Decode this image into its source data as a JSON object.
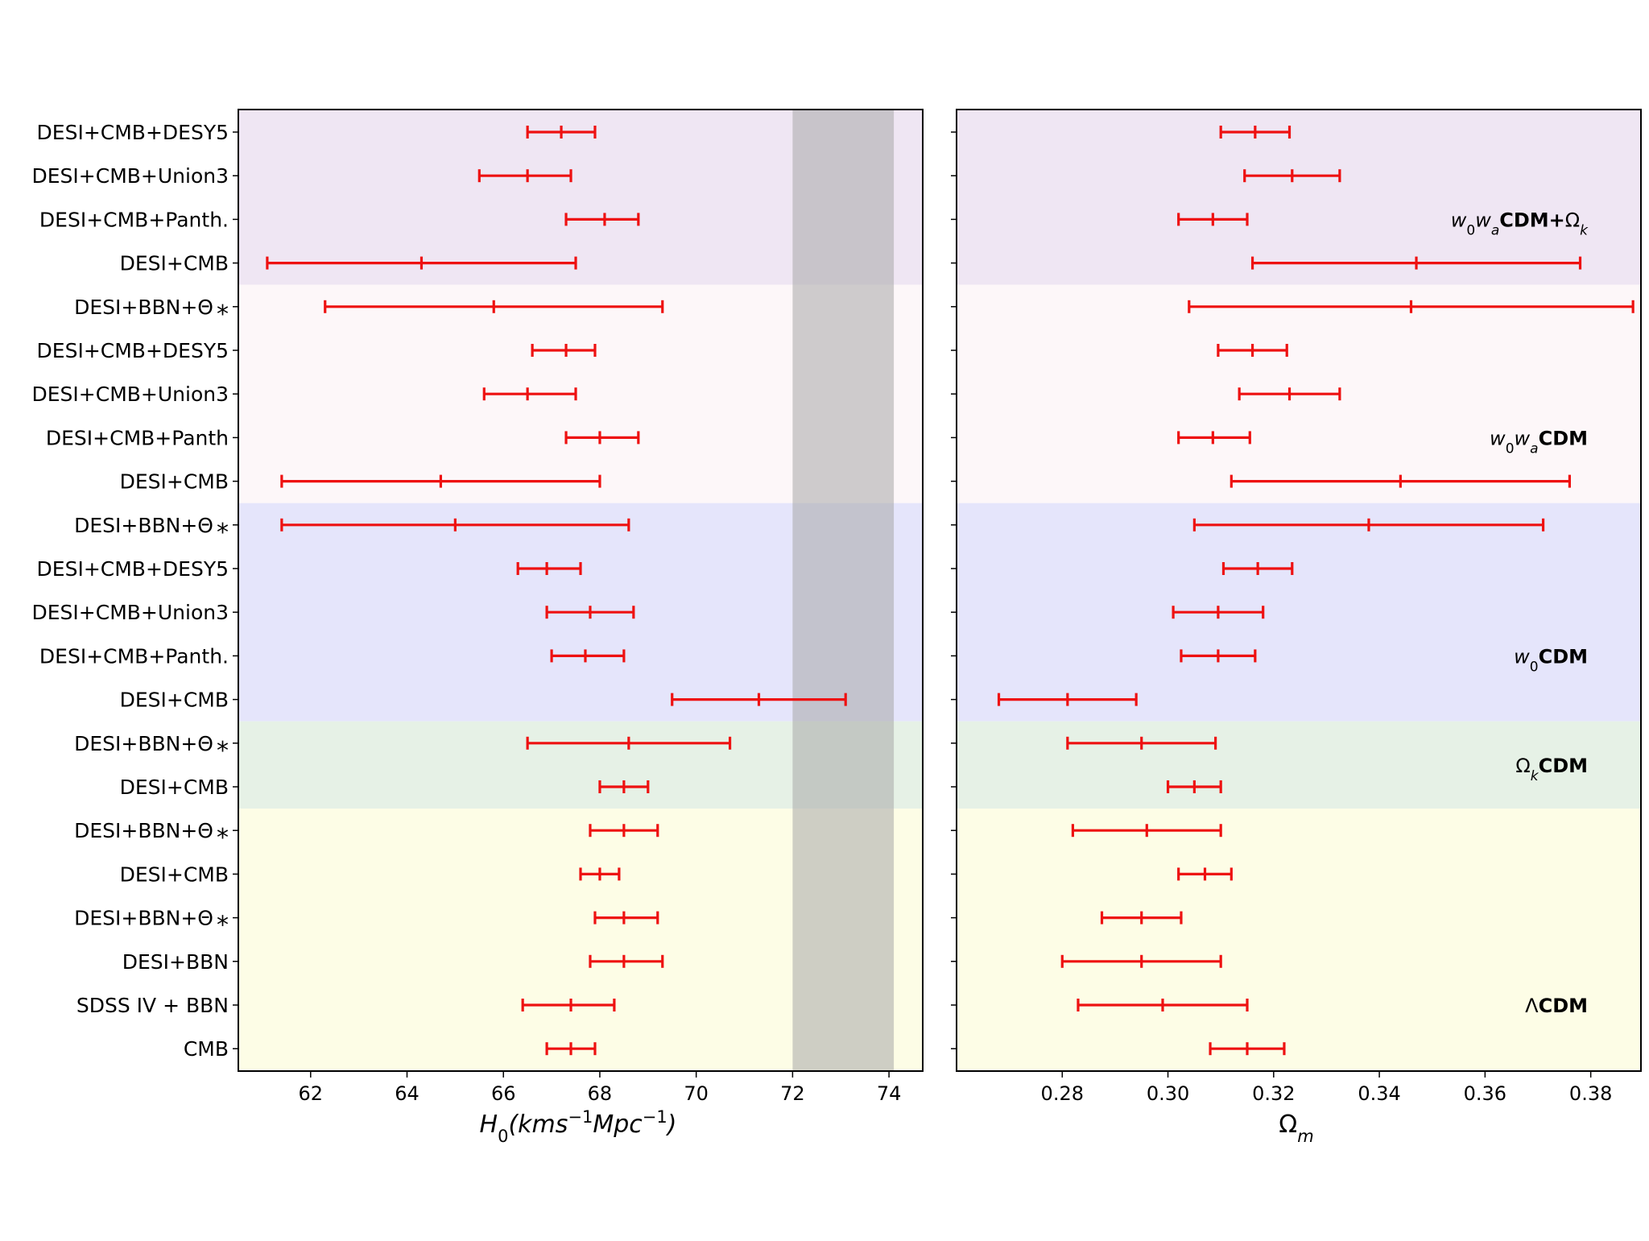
{
  "colors": {
    "marker": "#ee1111",
    "h0_band": "#a8a8a8",
    "w0wa_omegak": "#efe6f3",
    "w0wa": "#fdf7f9",
    "w0": "#e5e5fb",
    "omegak": "#e6f1e6",
    "lcdm": "#fdfde6"
  },
  "chart_data": [
    {
      "type": "errorbar",
      "panel": "H0",
      "xlabel": "H_0(kms^{-1}Mpc^{-1})",
      "xlim": [
        60.5,
        74.7
      ],
      "xticks": [
        62,
        64,
        66,
        68,
        70,
        72,
        74
      ],
      "shaded_band": [
        72.0,
        74.1
      ],
      "rows": [
        {
          "label": "DESI+CMB+DESY5",
          "value": 67.2,
          "low": 66.5,
          "high": 67.9
        },
        {
          "label": "DESI+CMB+Union3",
          "value": 66.5,
          "low": 65.5,
          "high": 67.4
        },
        {
          "label": "DESI+CMB+Panth.",
          "value": 68.1,
          "low": 67.3,
          "high": 68.8
        },
        {
          "label": "DESI+CMB",
          "value": 64.3,
          "low": 61.1,
          "high": 67.5
        },
        {
          "label": "DESI+BBN+Θ_*",
          "value": 65.8,
          "low": 62.3,
          "high": 69.3
        },
        {
          "label": "DESI+CMB+DESY5",
          "value": 67.3,
          "low": 66.6,
          "high": 67.9
        },
        {
          "label": "DESI+CMB+Union3",
          "value": 66.5,
          "low": 65.6,
          "high": 67.5
        },
        {
          "label": "DESI+CMB+Panth",
          "value": 68.0,
          "low": 67.3,
          "high": 68.8
        },
        {
          "label": "DESI+CMB",
          "value": 64.7,
          "low": 61.4,
          "high": 68.0
        },
        {
          "label": "DESI+BBN+Θ_*",
          "value": 65.0,
          "low": 61.4,
          "high": 68.6
        },
        {
          "label": "DESI+CMB+DESY5",
          "value": 66.9,
          "low": 66.3,
          "high": 67.6
        },
        {
          "label": "DESI+CMB+Union3",
          "value": 67.8,
          "low": 66.9,
          "high": 68.7
        },
        {
          "label": "DESI+CMB+Panth.",
          "value": 67.7,
          "low": 67.0,
          "high": 68.5
        },
        {
          "label": "DESI+CMB",
          "value": 71.3,
          "low": 69.5,
          "high": 73.1
        },
        {
          "label": "DESI+BBN+Θ_*",
          "value": 68.6,
          "low": 66.5,
          "high": 70.7
        },
        {
          "label": "DESI+CMB",
          "value": 68.5,
          "low": 68.0,
          "high": 69.0
        },
        {
          "label": "DESI+BBN+Θ_*",
          "value": 68.5,
          "low": 67.8,
          "high": 69.2
        },
        {
          "label": "DESI+CMB",
          "value": 68.0,
          "low": 67.6,
          "high": 68.4
        },
        {
          "label": "DESI+BBN+Θ_*",
          "value": 68.5,
          "low": 67.9,
          "high": 69.2
        },
        {
          "label": "DESI+BBN",
          "value": 68.5,
          "low": 67.8,
          "high": 69.3
        },
        {
          "label": "SDSS IV + BBN",
          "value": 67.4,
          "low": 66.4,
          "high": 68.3
        },
        {
          "label": "CMB",
          "value": 67.4,
          "low": 66.9,
          "high": 67.9
        }
      ]
    },
    {
      "type": "errorbar",
      "panel": "Omega_m",
      "xlabel": "Ω_m",
      "xlim": [
        0.26,
        0.3895
      ],
      "xticks": [
        0.28,
        0.3,
        0.32,
        0.34,
        0.36,
        0.38
      ],
      "xticklabels": [
        "0.28",
        "0.30",
        "0.32",
        "0.34",
        "0.36",
        "0.38"
      ],
      "rows": [
        {
          "value": 0.3165,
          "low": 0.31,
          "high": 0.323
        },
        {
          "value": 0.3235,
          "low": 0.3145,
          "high": 0.3325
        },
        {
          "value": 0.3085,
          "low": 0.302,
          "high": 0.315
        },
        {
          "value": 0.347,
          "low": 0.316,
          "high": 0.378
        },
        {
          "value": 0.346,
          "low": 0.304,
          "high": 0.388
        },
        {
          "value": 0.316,
          "low": 0.3095,
          "high": 0.3225
        },
        {
          "value": 0.323,
          "low": 0.3135,
          "high": 0.3325
        },
        {
          "value": 0.3085,
          "low": 0.302,
          "high": 0.3155
        },
        {
          "value": 0.344,
          "low": 0.312,
          "high": 0.376
        },
        {
          "value": 0.338,
          "low": 0.305,
          "high": 0.371
        },
        {
          "value": 0.317,
          "low": 0.3105,
          "high": 0.3235
        },
        {
          "value": 0.3095,
          "low": 0.301,
          "high": 0.318
        },
        {
          "value": 0.3095,
          "low": 0.3025,
          "high": 0.3165
        },
        {
          "value": 0.281,
          "low": 0.268,
          "high": 0.294
        },
        {
          "value": 0.295,
          "low": 0.281,
          "high": 0.309
        },
        {
          "value": 0.305,
          "low": 0.3,
          "high": 0.31
        },
        {
          "value": 0.296,
          "low": 0.282,
          "high": 0.31
        },
        {
          "value": 0.307,
          "low": 0.302,
          "high": 0.312
        },
        {
          "value": 0.295,
          "low": 0.2875,
          "high": 0.3025
        },
        {
          "value": 0.295,
          "low": 0.28,
          "high": 0.31
        },
        {
          "value": 0.299,
          "low": 0.283,
          "high": 0.315
        },
        {
          "value": 0.315,
          "low": 0.308,
          "high": 0.322
        }
      ]
    }
  ],
  "model_groups": [
    {
      "key": "w0wa_omegak",
      "first_row": 0,
      "last_row": 3,
      "label_parts": [
        {
          "t": "w",
          "it": true
        },
        {
          "t": "0",
          "sub": true
        },
        {
          "t": "w",
          "it": true
        },
        {
          "t": "a",
          "sub": true,
          "it": true
        },
        {
          "t": "CDM+",
          "bold": true
        },
        {
          "t": "Ω"
        },
        {
          "t": "k",
          "sub": true,
          "it": true
        }
      ],
      "label_row": 2
    },
    {
      "key": "w0wa",
      "first_row": 4,
      "last_row": 8,
      "label_parts": [
        {
          "t": "w",
          "it": true
        },
        {
          "t": "0",
          "sub": true
        },
        {
          "t": "w",
          "it": true
        },
        {
          "t": "a",
          "sub": true,
          "it": true
        },
        {
          "t": "CDM",
          "bold": true
        }
      ],
      "label_row": 7
    },
    {
      "key": "w0",
      "first_row": 9,
      "last_row": 13,
      "label_parts": [
        {
          "t": "w",
          "it": true
        },
        {
          "t": "0",
          "sub": true
        },
        {
          "t": "CDM",
          "bold": true
        }
      ],
      "label_row": 12
    },
    {
      "key": "omegak",
      "first_row": 14,
      "last_row": 15,
      "label_parts": [
        {
          "t": "Ω"
        },
        {
          "t": "k",
          "sub": true,
          "it": true
        },
        {
          "t": "CDM",
          "bold": true
        }
      ],
      "label_row": 14.5
    },
    {
      "key": "lcdm",
      "first_row": 16,
      "last_row": 21,
      "label_parts": [
        {
          "t": "Λ"
        },
        {
          "t": "CDM",
          "bold": true
        }
      ],
      "label_row": 20
    }
  ]
}
